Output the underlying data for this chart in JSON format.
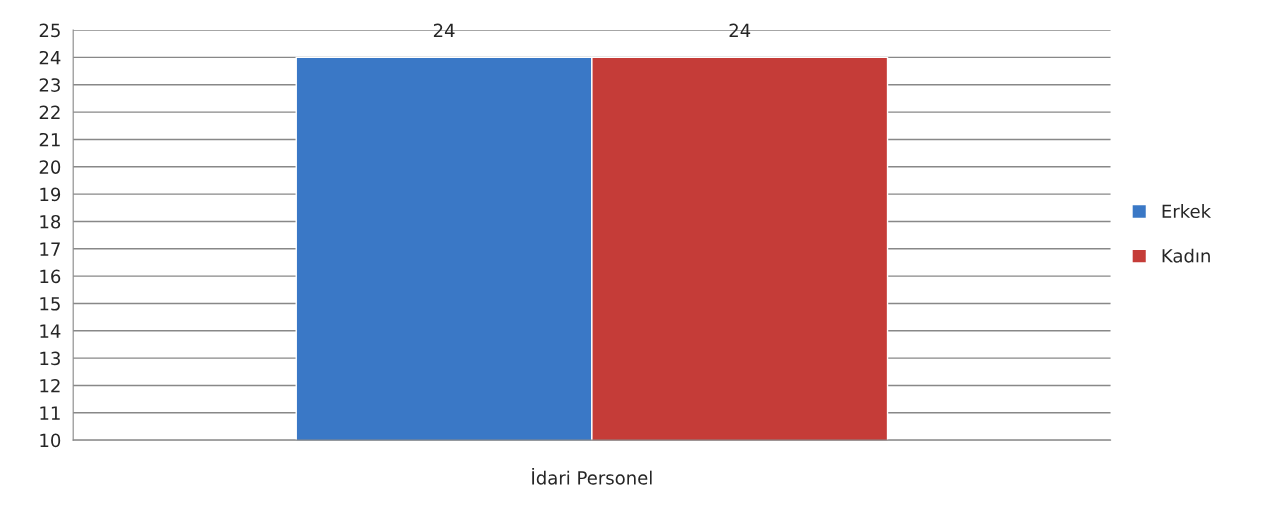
{
  "chart_data": {
    "type": "bar",
    "categories": [
      "İdari Personel"
    ],
    "series": [
      {
        "name": "Erkek",
        "color": "#3a78c6",
        "values": [
          24
        ]
      },
      {
        "name": "Kadın",
        "color": "#c53c38",
        "values": [
          24
        ]
      }
    ],
    "ylim": [
      10,
      25
    ],
    "yticks": [
      10,
      11,
      12,
      13,
      14,
      15,
      16,
      17,
      18,
      19,
      20,
      21,
      22,
      23,
      24,
      25
    ],
    "grid": "y",
    "legend": "right",
    "data_labels": true
  }
}
